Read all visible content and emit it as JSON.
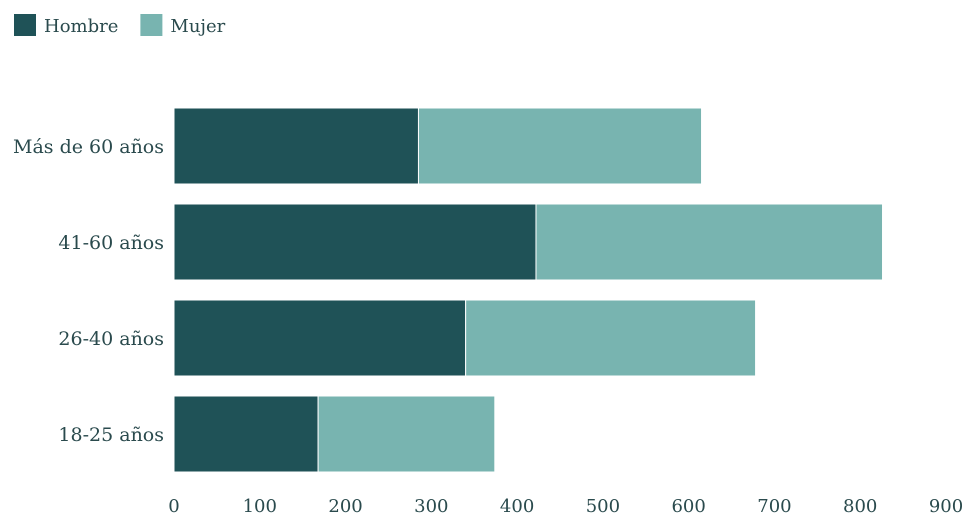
{
  "chart_data": {
    "type": "bar",
    "orientation": "horizontal",
    "stacked": true,
    "categories": [
      "Más de 60 años",
      "41-60 años",
      "26-40 años",
      "18-25 años"
    ],
    "series": [
      {
        "name": "Hombre",
        "color": "#1f5257",
        "values": [
          285,
          422,
          340,
          168
        ]
      },
      {
        "name": "Mujer",
        "color": "#78b4b0",
        "values": [
          330,
          404,
          338,
          206
        ]
      }
    ],
    "xlim": [
      0,
      900
    ],
    "xticks": [
      0,
      100,
      200,
      300,
      400,
      500,
      600,
      700,
      800,
      900
    ],
    "legend_position": "top-left",
    "grid": false
  }
}
